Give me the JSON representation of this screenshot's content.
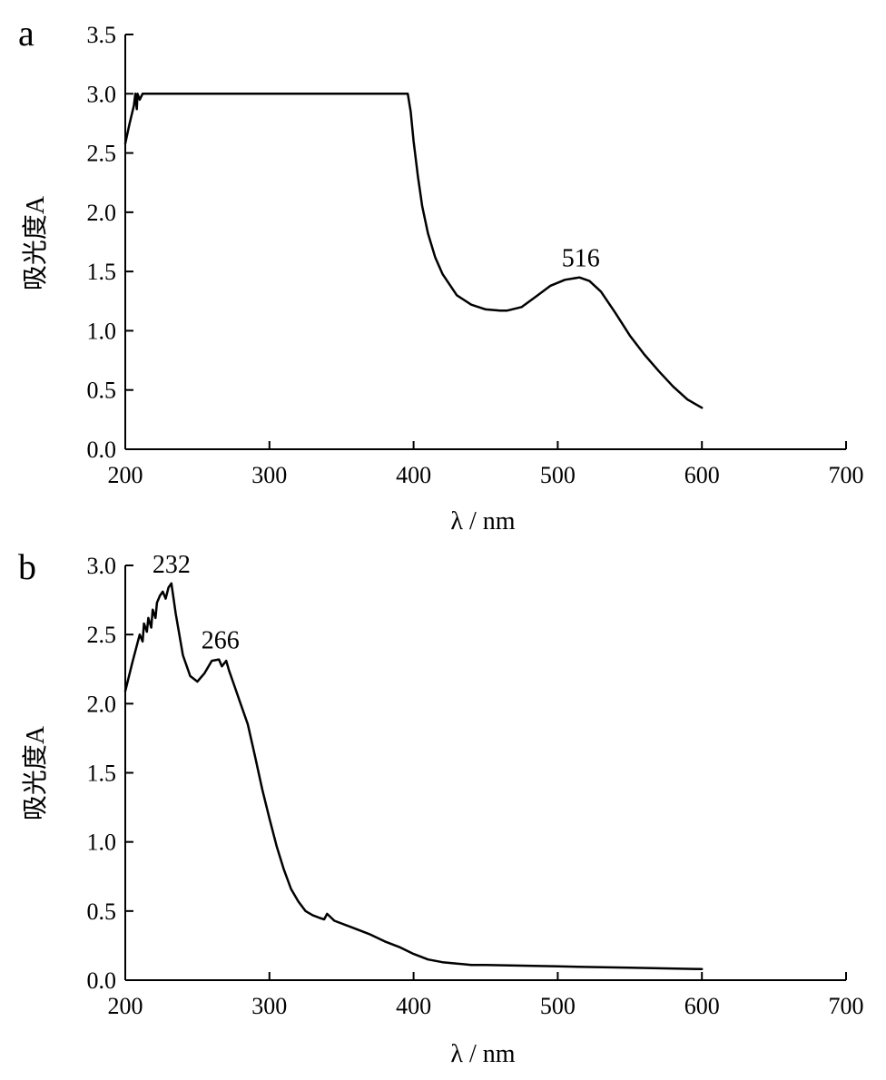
{
  "chart_data": [
    {
      "panel_label": "a",
      "type": "line",
      "xlabel": "λ / nm",
      "ylabel": "吸光度A",
      "xlim": [
        200,
        700
      ],
      "ylim": [
        0,
        3.5
      ],
      "xticks": [
        "200",
        "300",
        "400",
        "500",
        "600",
        "700"
      ],
      "yticks": [
        "0.0",
        "0.5",
        "1.0",
        "1.5",
        "2.0",
        "2.5",
        "3.0",
        "3.5"
      ],
      "grid": false,
      "annotations": [
        {
          "text": "516",
          "x": 516,
          "y": 1.45
        }
      ],
      "series": [
        {
          "x": [
            200,
            203,
            206,
            207,
            208,
            208.5,
            210,
            212,
            215,
            250,
            300,
            350,
            396,
            398,
            400,
            403,
            406,
            410,
            415,
            420,
            430,
            440,
            450,
            460,
            465,
            475,
            485,
            495,
            505,
            515,
            522,
            530,
            540,
            550,
            560,
            570,
            580,
            590,
            600
          ],
          "y": [
            2.58,
            2.75,
            2.9,
            3.0,
            2.87,
            3.0,
            2.95,
            3.0,
            3.0,
            3.0,
            3.0,
            3.0,
            3.0,
            2.85,
            2.6,
            2.3,
            2.05,
            1.82,
            1.62,
            1.48,
            1.3,
            1.22,
            1.18,
            1.17,
            1.17,
            1.2,
            1.29,
            1.38,
            1.43,
            1.45,
            1.42,
            1.33,
            1.15,
            0.96,
            0.8,
            0.66,
            0.53,
            0.42,
            0.35
          ]
        }
      ]
    },
    {
      "panel_label": "b",
      "type": "line",
      "xlabel": "λ / nm",
      "ylabel": "吸光度A",
      "xlim": [
        200,
        700
      ],
      "ylim": [
        0,
        3.0
      ],
      "xticks": [
        "200",
        "300",
        "400",
        "500",
        "600",
        "700"
      ],
      "yticks": [
        "0.0",
        "0.5",
        "1.0",
        "1.5",
        "2.0",
        "2.5",
        "3.0"
      ],
      "grid": false,
      "annotations": [
        {
          "text": "232",
          "x": 232,
          "y": 2.87
        },
        {
          "text": "266",
          "x": 266,
          "y": 2.32
        }
      ],
      "series": [
        {
          "x": [
            200,
            205,
            210,
            212,
            213,
            215,
            216,
            218,
            219,
            221,
            222,
            224,
            226,
            228,
            230,
            232,
            235,
            240,
            245,
            250,
            255,
            260,
            265,
            267,
            270,
            272,
            275,
            280,
            285,
            290,
            295,
            300,
            305,
            310,
            315,
            320,
            325,
            330,
            335,
            338,
            340,
            345,
            350,
            360,
            370,
            380,
            390,
            400,
            410,
            420,
            430,
            440,
            450,
            500,
            550,
            600
          ],
          "y": [
            2.09,
            2.3,
            2.5,
            2.45,
            2.58,
            2.52,
            2.62,
            2.55,
            2.68,
            2.62,
            2.73,
            2.78,
            2.81,
            2.76,
            2.84,
            2.87,
            2.65,
            2.35,
            2.2,
            2.16,
            2.22,
            2.31,
            2.32,
            2.27,
            2.31,
            2.24,
            2.15,
            2.0,
            1.85,
            1.62,
            1.38,
            1.17,
            0.97,
            0.8,
            0.66,
            0.57,
            0.5,
            0.47,
            0.45,
            0.44,
            0.48,
            0.43,
            0.41,
            0.37,
            0.33,
            0.28,
            0.24,
            0.19,
            0.15,
            0.13,
            0.12,
            0.11,
            0.11,
            0.1,
            0.09,
            0.08
          ]
        }
      ]
    }
  ]
}
